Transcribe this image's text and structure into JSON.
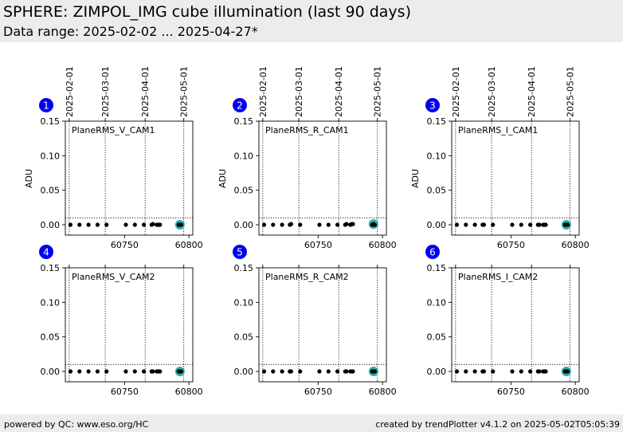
{
  "header": {
    "title": "SPHERE: ZIMPOL_IMG cube illumination (last 90 days)",
    "subtitle": "Data range: 2025-02-02 ... 2025-04-27*"
  },
  "footer": {
    "left": "powered by QC: www.eso.org/HC",
    "right": "created by trendPlotter v4.1.2 on 2025-05-02T05:05:39"
  },
  "colors": {
    "badge": "#0000ee",
    "point": "#000000",
    "highlight": "#20b2aa",
    "header_bg": "#ececec"
  },
  "chart_data": {
    "type": "scatter",
    "ylim": [
      -0.015,
      0.15
    ],
    "xlim": [
      60704,
      60803
    ],
    "y_ticks": [
      "0.15",
      "0.10",
      "0.05",
      "0.00"
    ],
    "y_tick_values": [
      0.15,
      0.1,
      0.05,
      0.0
    ],
    "x_ticks": [
      "60750",
      "60800"
    ],
    "x_tick_values": [
      60750,
      60800
    ],
    "date_ticks": [
      "2025-02-01",
      "2025-03-01",
      "2025-04-01",
      "2025-05-01"
    ],
    "date_tick_values": [
      60707,
      60735,
      60766,
      60796
    ],
    "threshold_line": 0.01,
    "ylabel": "ADU",
    "panels": [
      {
        "badge": "1",
        "name": "PlaneRMS_V_CAM1",
        "ylabel": "ADU",
        "x": [
          60708,
          60715,
          60722,
          60729,
          60736,
          60751,
          60758,
          60765,
          60771,
          60772,
          60775,
          60776,
          60777,
          60777.5,
          60792,
          60793,
          60794
        ],
        "y": [
          0,
          0,
          0,
          0,
          0,
          0,
          0,
          0,
          0,
          0.001,
          0,
          0,
          0,
          0,
          0,
          0,
          0
        ],
        "highlight": {
          "x": 60793,
          "y": 0
        }
      },
      {
        "badge": "2",
        "name": "PlaneRMS_R_CAM1",
        "ylabel": "ADU",
        "x": [
          60708,
          60715,
          60722,
          60728,
          60729,
          60736,
          60751,
          60758,
          60765,
          60771,
          60772,
          60775,
          60776,
          60777,
          60792,
          60793,
          60794
        ],
        "y": [
          0,
          0,
          0,
          0,
          0.001,
          0,
          0,
          0,
          0,
          0,
          0.001,
          0,
          0.001,
          0.001,
          0,
          0.001,
          0
        ],
        "highlight": {
          "x": 60793,
          "y": 0.001
        }
      },
      {
        "badge": "3",
        "name": "PlaneRMS_I_CAM1",
        "ylabel": "ADU",
        "x": [
          60708,
          60715,
          60722,
          60728,
          60729,
          60736,
          60751,
          60758,
          60765,
          60771,
          60772,
          60775,
          60776,
          60777,
          60792,
          60793,
          60794
        ],
        "y": [
          0,
          0,
          0,
          0,
          0,
          0,
          0,
          0,
          0,
          0,
          0,
          0,
          0,
          0,
          0,
          0,
          0
        ],
        "highlight": {
          "x": 60793,
          "y": 0
        }
      },
      {
        "badge": "4",
        "name": "PlaneRMS_V_CAM2",
        "ylabel": "",
        "x": [
          60708,
          60715,
          60722,
          60729,
          60736,
          60751,
          60758,
          60765,
          60771,
          60772,
          60775,
          60776,
          60777,
          60777.5,
          60792,
          60793,
          60794
        ],
        "y": [
          0,
          0,
          0,
          0,
          0,
          0,
          0,
          0,
          0,
          0,
          0,
          0,
          0,
          0,
          0,
          0,
          0
        ],
        "highlight": {
          "x": 60793,
          "y": 0
        }
      },
      {
        "badge": "5",
        "name": "PlaneRMS_R_CAM2",
        "ylabel": "",
        "x": [
          60708,
          60715,
          60722,
          60728,
          60729,
          60736,
          60751,
          60758,
          60765,
          60771,
          60772,
          60775,
          60776,
          60777,
          60792,
          60793,
          60794
        ],
        "y": [
          0,
          0,
          0,
          0,
          0,
          0,
          0,
          0,
          0,
          0,
          0,
          0,
          0,
          0,
          0,
          0,
          0
        ],
        "highlight": {
          "x": 60793,
          "y": 0
        }
      },
      {
        "badge": "6",
        "name": "PlaneRMS_I_CAM2",
        "ylabel": "",
        "x": [
          60708,
          60715,
          60722,
          60728,
          60729,
          60736,
          60751,
          60758,
          60765,
          60771,
          60772,
          60775,
          60776,
          60777,
          60792,
          60793,
          60794
        ],
        "y": [
          0,
          0,
          0,
          0,
          0,
          0,
          0,
          0,
          0,
          0,
          0,
          0,
          0,
          0,
          0,
          0,
          0
        ],
        "highlight": {
          "x": 60793,
          "y": 0
        }
      }
    ]
  }
}
